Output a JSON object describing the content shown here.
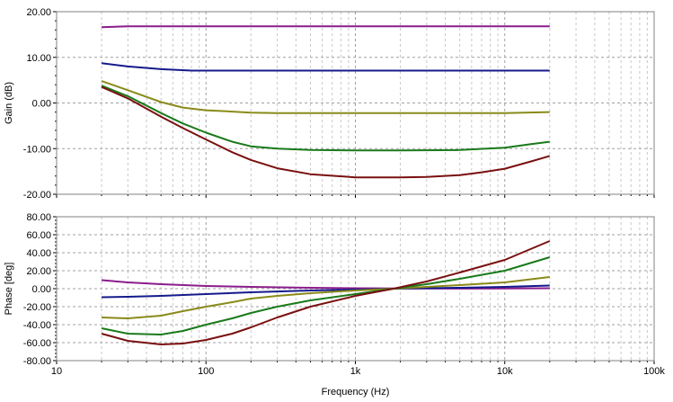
{
  "chart_data": [
    {
      "type": "line",
      "panel": "gain",
      "ylabel": "Gain (dB)",
      "xscale": "log",
      "xlim": [
        10,
        100000
      ],
      "ylim": [
        -20,
        20
      ],
      "yticks": [
        "20.00",
        "10.00",
        "0.00",
        "-10.00",
        "-20.00"
      ],
      "grid": true,
      "series": [
        {
          "color": "#8b1c8b",
          "x": [
            20,
            30,
            50,
            100,
            300,
            1000,
            3000,
            10000,
            20000
          ],
          "y": [
            16.6,
            16.8,
            16.8,
            16.8,
            16.8,
            16.8,
            16.8,
            16.8,
            16.8
          ]
        },
        {
          "color": "#141a8c",
          "x": [
            20,
            30,
            50,
            80,
            100,
            300,
            1000,
            3000,
            10000,
            20000
          ],
          "y": [
            8.7,
            8.0,
            7.4,
            7.1,
            7.1,
            7.1,
            7.1,
            7.1,
            7.1,
            7.1
          ]
        },
        {
          "color": "#8a8a1a",
          "x": [
            20,
            30,
            50,
            70,
            100,
            150,
            200,
            300,
            500,
            1000,
            3000,
            10000,
            20000
          ],
          "y": [
            4.8,
            2.8,
            0.2,
            -1.0,
            -1.6,
            -1.9,
            -2.1,
            -2.2,
            -2.2,
            -2.2,
            -2.2,
            -2.2,
            -2.0
          ]
        },
        {
          "color": "#1a7a1a",
          "x": [
            20,
            30,
            50,
            70,
            100,
            150,
            200,
            300,
            500,
            1000,
            2000,
            5000,
            10000,
            15000,
            20000
          ],
          "y": [
            3.8,
            1.5,
            -2.2,
            -4.5,
            -6.5,
            -8.5,
            -9.5,
            -10.0,
            -10.3,
            -10.4,
            -10.4,
            -10.3,
            -9.8,
            -9.0,
            -8.5
          ]
        },
        {
          "color": "#7a1010",
          "x": [
            20,
            30,
            50,
            70,
            100,
            150,
            200,
            300,
            500,
            1000,
            2000,
            3000,
            5000,
            7000,
            10000,
            15000,
            20000
          ],
          "y": [
            3.5,
            1.0,
            -3.0,
            -5.5,
            -8.0,
            -10.8,
            -12.5,
            -14.3,
            -15.6,
            -16.3,
            -16.3,
            -16.2,
            -15.8,
            -15.2,
            -14.4,
            -12.8,
            -11.6
          ]
        }
      ]
    },
    {
      "type": "line",
      "panel": "phase",
      "xlabel": "Frequency (Hz)",
      "ylabel": "Phase [deg]",
      "xscale": "log",
      "xlim": [
        10,
        100000
      ],
      "ylim": [
        -80,
        80
      ],
      "xticks": [
        "10",
        "100",
        "1k",
        "10k",
        "100k"
      ],
      "yticks": [
        "80.00",
        "60.00",
        "40.00",
        "20.00",
        "0.00",
        "-20.00",
        "-40.00",
        "-60.00",
        "-80.00"
      ],
      "grid": true,
      "series": [
        {
          "color": "#8b1c8b",
          "x": [
            20,
            30,
            50,
            100,
            200,
            500,
            1000,
            2000,
            5000,
            10000,
            20000
          ],
          "y": [
            9.5,
            7.0,
            5.0,
            3.0,
            2.0,
            1.0,
            0.5,
            0.2,
            0.1,
            0.2,
            0.5
          ]
        },
        {
          "color": "#141a8c",
          "x": [
            20,
            30,
            50,
            100,
            200,
            500,
            1000,
            1800,
            5000,
            10000,
            20000
          ],
          "y": [
            -9.5,
            -9.0,
            -8.0,
            -6.0,
            -4.0,
            -2.0,
            -1.0,
            0.0,
            1.0,
            2.0,
            3.5
          ]
        },
        {
          "color": "#8a8a1a",
          "x": [
            20,
            30,
            50,
            70,
            100,
            150,
            200,
            300,
            500,
            1000,
            1800,
            3000,
            5000,
            10000,
            20000
          ],
          "y": [
            -32,
            -33,
            -30,
            -25,
            -20,
            -15,
            -11,
            -8,
            -5,
            -2,
            0,
            2,
            4,
            7,
            13
          ]
        },
        {
          "color": "#1a7a1a",
          "x": [
            20,
            30,
            50,
            70,
            100,
            150,
            200,
            300,
            500,
            1000,
            1800,
            3000,
            5000,
            10000,
            20000
          ],
          "y": [
            -44,
            -50,
            -51,
            -47,
            -40,
            -33,
            -27,
            -20,
            -13,
            -6,
            0,
            5,
            11,
            20,
            35
          ]
        },
        {
          "color": "#7a1010",
          "x": [
            20,
            30,
            50,
            70,
            100,
            150,
            200,
            300,
            500,
            1000,
            1800,
            3000,
            5000,
            10000,
            20000
          ],
          "y": [
            -50,
            -58,
            -62,
            -61,
            -57,
            -50,
            -43,
            -32,
            -20,
            -8,
            0,
            8,
            18,
            32,
            53
          ]
        }
      ]
    }
  ]
}
